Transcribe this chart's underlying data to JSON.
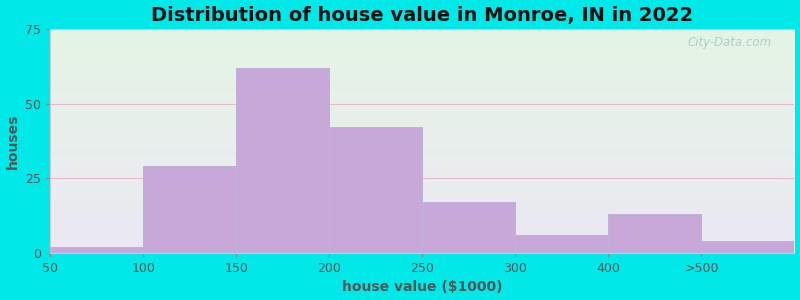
{
  "title": "Distribution of house value in Monroe, IN in 2022",
  "xlabel": "house value ($1000)",
  "ylabel": "houses",
  "bar_labels": [
    "50",
    "100",
    "150",
    "200",
    "250",
    "300",
    "400",
    ">500"
  ],
  "bar_values": [
    2,
    29,
    62,
    42,
    17,
    6,
    13,
    4
  ],
  "bar_color": "#c8a8d8",
  "bar_edge_color": "#c0b0d8",
  "ylim": [
    0,
    75
  ],
  "yticks": [
    0,
    25,
    50,
    75
  ],
  "background_outer": "#00e8e8",
  "background_inner_top": "#e4f5e4",
  "background_inner_bottom": "#ebe8f4",
  "title_fontsize": 14,
  "axis_label_fontsize": 10,
  "tick_fontsize": 9,
  "watermark_text": "City-Data.com",
  "watermark_color": "#aac8c8",
  "grid_color": "#e8b8cc"
}
